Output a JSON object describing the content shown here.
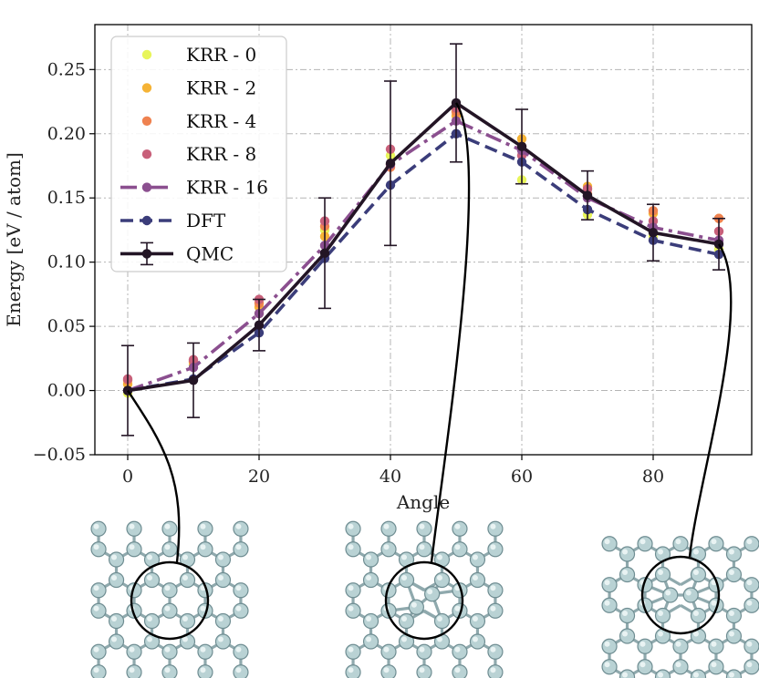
{
  "chart_data": {
    "type": "line",
    "title": "",
    "xlabel": "Angle",
    "ylabel": "Energy [eV / atom]",
    "xlim": [
      -5,
      95
    ],
    "ylim": [
      -0.05,
      0.285
    ],
    "x": [
      0,
      10,
      20,
      30,
      40,
      50,
      60,
      70,
      80,
      90
    ],
    "xticks": [
      0,
      20,
      40,
      60,
      80
    ],
    "xtick_labels": [
      "0",
      "20",
      "40",
      "60",
      "80"
    ],
    "yticks": [
      -0.05,
      0.0,
      0.05,
      0.1,
      0.15,
      0.2,
      0.25
    ],
    "ytick_labels": [
      "−0.05",
      "0.00",
      "0.05",
      "0.10",
      "0.15",
      "0.20",
      "0.25"
    ],
    "grid": true,
    "legend_position": "top-left",
    "series": [
      {
        "name": "KRR - 0",
        "style": "markers",
        "color": "#e8f55a",
        "values": [
          -0.002,
          0.02,
          0.06,
          0.125,
          0.183,
          0.218,
          0.164,
          0.137,
          0.12,
          0.11
        ]
      },
      {
        "name": "KRR - 2",
        "style": "markers",
        "color": "#f5b335",
        "values": [
          0.005,
          0.022,
          0.065,
          0.12,
          0.176,
          0.214,
          0.196,
          0.159,
          0.138,
          0.134
        ]
      },
      {
        "name": "KRR - 4",
        "style": "markers",
        "color": "#ef8250",
        "values": [
          0.008,
          0.023,
          0.068,
          0.128,
          0.174,
          0.217,
          0.19,
          0.153,
          0.14,
          0.134
        ]
      },
      {
        "name": "KRR - 8",
        "style": "markers",
        "color": "#c8607a",
        "values": [
          0.009,
          0.024,
          0.071,
          0.132,
          0.188,
          0.22,
          0.183,
          0.157,
          0.132,
          0.124
        ]
      },
      {
        "name": "KRR - 16",
        "style": "dashdot",
        "color": "#8b4f8f",
        "values": [
          0.0,
          0.018,
          0.06,
          0.113,
          0.176,
          0.21,
          0.187,
          0.15,
          0.127,
          0.117
        ]
      },
      {
        "name": "DFT",
        "style": "dashed",
        "color": "#3b3d7a",
        "values": [
          0.0,
          0.009,
          0.045,
          0.103,
          0.16,
          0.2,
          0.178,
          0.141,
          0.117,
          0.106
        ]
      },
      {
        "name": "QMC",
        "style": "solid-errorbar",
        "color": "#231525",
        "values": [
          0.0,
          0.008,
          0.051,
          0.107,
          0.177,
          0.224,
          0.19,
          0.152,
          0.123,
          0.114
        ],
        "errors": [
          0.035,
          0.029,
          0.02,
          0.043,
          0.064,
          0.046,
          0.029,
          0.019,
          0.022,
          0.02
        ]
      }
    ]
  },
  "insets": [
    {
      "name": "structure-0",
      "angle": 0
    },
    {
      "name": "structure-50",
      "angle": 50
    },
    {
      "name": "structure-90",
      "angle": 90
    }
  ]
}
